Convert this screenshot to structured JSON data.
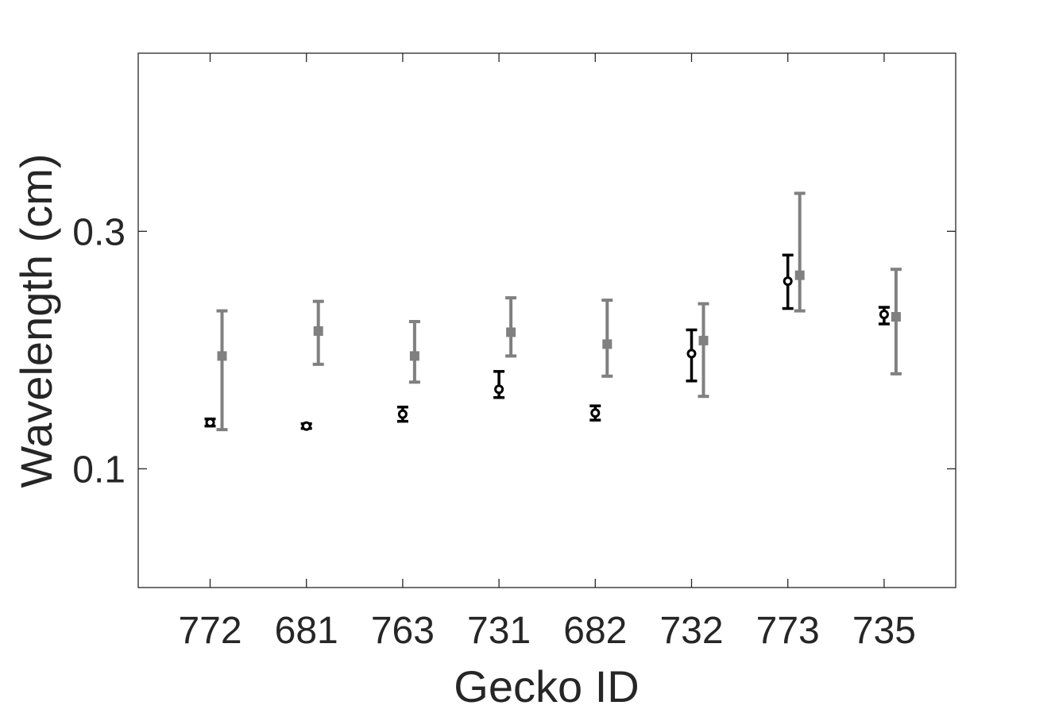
{
  "chart_data": {
    "type": "scatter",
    "title": "",
    "xlabel": "Gecko ID",
    "ylabel": "Wavelength (cm)",
    "categories": [
      "772",
      "681",
      "763",
      "731",
      "682",
      "732",
      "773",
      "735"
    ],
    "yticks": [
      {
        "value": 0.1,
        "label": "0.1"
      },
      {
        "value": 0.3,
        "label": "0.3"
      }
    ],
    "ylim": [
      0,
      0.45
    ],
    "grid": false,
    "legend": "none",
    "series": [
      {
        "color": "#000000",
        "marker": "open-circle",
        "values": [
          0.139,
          0.136,
          0.146,
          0.167,
          0.147,
          0.197,
          0.258,
          0.23
        ],
        "err_low": [
          0.003,
          0.002,
          0.006,
          0.007,
          0.006,
          0.023,
          0.023,
          0.008
        ],
        "err_high": [
          0.003,
          0.002,
          0.006,
          0.015,
          0.006,
          0.02,
          0.022,
          0.006
        ]
      },
      {
        "color": "#808080",
        "marker": "filled-square",
        "values": [
          0.195,
          0.216,
          0.195,
          0.215,
          0.205,
          0.208,
          0.263,
          0.228
        ],
        "err_low": [
          0.062,
          0.028,
          0.022,
          0.02,
          0.027,
          0.047,
          0.03,
          0.048
        ],
        "err_high": [
          0.038,
          0.025,
          0.029,
          0.029,
          0.037,
          0.031,
          0.069,
          0.04
        ]
      }
    ]
  }
}
